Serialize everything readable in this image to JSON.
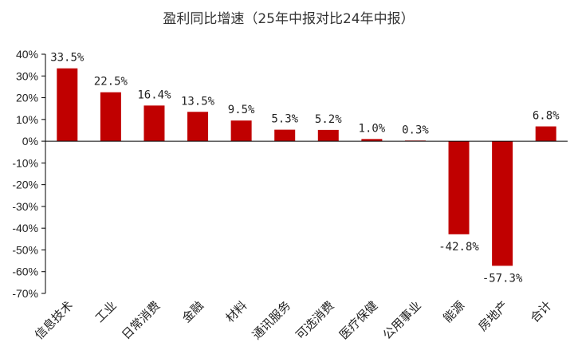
{
  "chart_data": {
    "type": "bar",
    "title": "盈利同比增速（25年中报对比24年中报）",
    "categories": [
      "信息技术",
      "工业",
      "日常消费",
      "金融",
      "材料",
      "通讯服务",
      "可选消费",
      "医疗保健",
      "公用事业",
      "能源",
      "房地产",
      "合计"
    ],
    "values": [
      33.5,
      22.5,
      16.4,
      13.5,
      9.5,
      5.3,
      5.2,
      1.0,
      0.3,
      -42.8,
      -57.3,
      6.8
    ],
    "data_labels": [
      "33.5%",
      "22.5%",
      "16.4%",
      "13.5%",
      "9.5%",
      "5.3%",
      "5.2%",
      "1.0%",
      "0.3%",
      "-42.8%",
      "-57.3%",
      "6.8%"
    ],
    "ylim": [
      -70,
      40
    ],
    "yticks": [
      40,
      30,
      20,
      10,
      0,
      -10,
      -20,
      -30,
      -40,
      -50,
      -60,
      -70
    ],
    "ytick_labels": [
      "40%",
      "30%",
      "20%",
      "10%",
      "0%",
      "-10%",
      "-20%",
      "-30%",
      "-40%",
      "-50%",
      "-60%",
      "-70%"
    ],
    "bar_color": "#c00000",
    "grid": false,
    "legend": "none"
  }
}
